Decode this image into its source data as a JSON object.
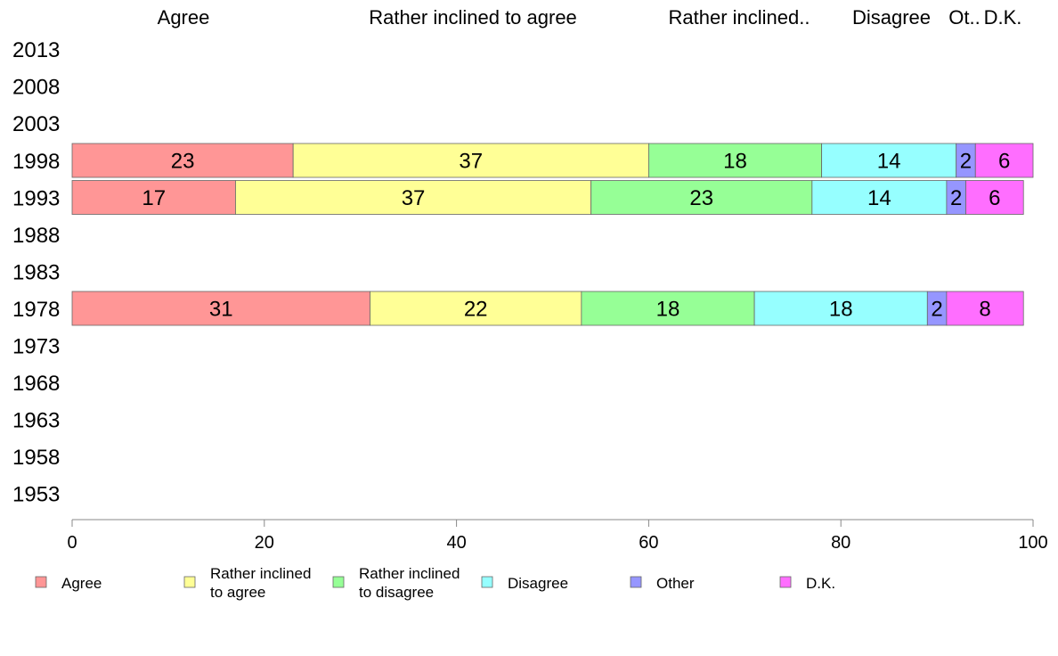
{
  "chart_data": {
    "type": "bar",
    "orientation": "horizontal",
    "stacked": true,
    "title": "",
    "xlabel": "",
    "ylabel": "",
    "xlim": [
      0,
      100
    ],
    "x_ticks": [
      0,
      20,
      40,
      60,
      80,
      100
    ],
    "grid": false,
    "legend_position": "bottom",
    "column_headers": [
      "Agree",
      "Rather inclined to agree",
      "Rather inclined..",
      "Disagree",
      "Ot..",
      "D.K."
    ],
    "categories": [
      "2013",
      "2008",
      "2003",
      "1998",
      "1993",
      "1988",
      "1983",
      "1978",
      "1973",
      "1968",
      "1963",
      "1958",
      "1953"
    ],
    "series": [
      {
        "name": "Agree",
        "legend": [
          "Agree"
        ],
        "color": "#ff9696",
        "values": [
          null,
          null,
          null,
          23,
          17,
          null,
          null,
          31,
          null,
          null,
          null,
          null,
          null
        ]
      },
      {
        "name": "Rather inclined to agree",
        "legend": [
          "Rather inclined",
          "to agree"
        ],
        "color": "#ffff96",
        "values": [
          null,
          null,
          null,
          37,
          37,
          null,
          null,
          22,
          null,
          null,
          null,
          null,
          null
        ]
      },
      {
        "name": "Rather inclined to disagree",
        "legend": [
          "Rather inclined",
          "to disagree"
        ],
        "color": "#96ff96",
        "values": [
          null,
          null,
          null,
          18,
          23,
          null,
          null,
          18,
          null,
          null,
          null,
          null,
          null
        ]
      },
      {
        "name": "Disagree",
        "legend": [
          "Disagree"
        ],
        "color": "#96ffff",
        "values": [
          null,
          null,
          null,
          14,
          14,
          null,
          null,
          18,
          null,
          null,
          null,
          null,
          null
        ]
      },
      {
        "name": "Other",
        "legend": [
          "Other"
        ],
        "color": "#9696ff",
        "values": [
          null,
          null,
          null,
          2,
          2,
          null,
          null,
          2,
          null,
          null,
          null,
          null,
          null
        ]
      },
      {
        "name": "D.K.",
        "legend": [
          "D.K."
        ],
        "color": "#ff6eff",
        "values": [
          null,
          null,
          null,
          6,
          6,
          null,
          null,
          8,
          null,
          null,
          null,
          null,
          null
        ]
      }
    ]
  }
}
